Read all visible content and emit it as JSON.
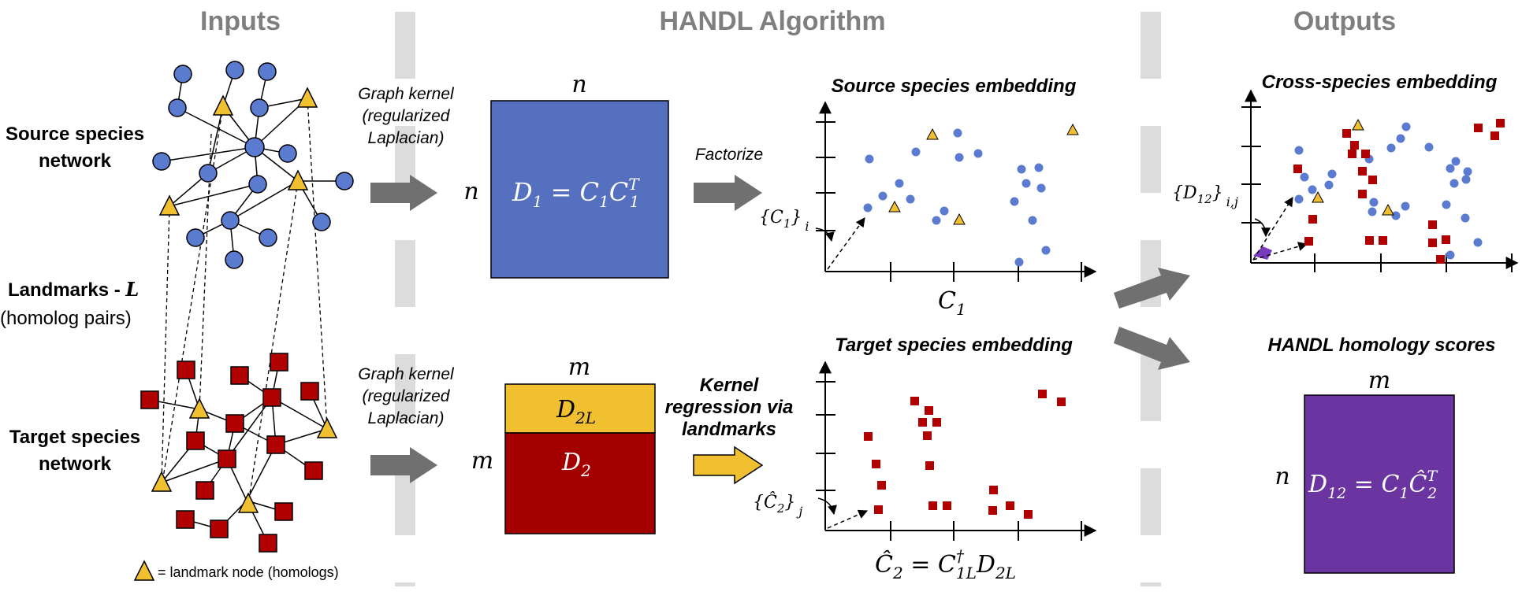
{
  "headers": {
    "inputs": "Inputs",
    "algorithm": "HANDL Algorithm",
    "outputs": "Outputs"
  },
  "inputs": {
    "source_label_1": "Source species",
    "source_label_2": "network",
    "landmarks_label": "Landmarks - ",
    "landmarks_var": "L",
    "landmarks_sub": "(homolog pairs)",
    "target_label_1": "Target species",
    "target_label_2": "network",
    "legend_text": "= landmark node (homologs)"
  },
  "algorithm": {
    "kernel_top_1": "Graph kernel",
    "kernel_top_2": "(regularized",
    "kernel_top_3": "Laplacian)",
    "kernel_bottom_1": "Graph kernel",
    "kernel_bottom_2": "(regularized",
    "kernel_bottom_3": "Laplacian)",
    "matrix1_col": "n",
    "matrix1_row": "n",
    "matrix1_formula_a": "D",
    "matrix1_formula_a_sub": "1",
    "matrix1_formula_eq": " = C",
    "matrix1_formula_b_sub": "1",
    "matrix1_formula_c": "C",
    "matrix1_formula_c_sub": "1",
    "matrix1_formula_c_sup": "T",
    "matrix2_col": "m",
    "matrix2_row": "m",
    "matrix2_top": "D",
    "matrix2_top_sub": "2L",
    "matrix2_bottom": "D",
    "matrix2_bottom_sub": "2",
    "factorize": "Factorize",
    "kernel_reg_1": "Kernel",
    "kernel_reg_2": "regression via",
    "kernel_reg_3": "landmarks",
    "source_embed_title": "Source species embedding",
    "target_embed_title": "Target species embedding",
    "c1_axis": "C",
    "c1_axis_sub": "1",
    "c1_label": "{C",
    "c1_label_sub": "1",
    "c1_label_close": "}",
    "c1_label_i": "i",
    "c2_label": "{Ĉ",
    "c2_label_sub": "2",
    "c2_label_close": "}",
    "c2_label_j": "j",
    "c2_formula_a": "Ĉ",
    "c2_formula_a_sub": "2",
    "c2_formula_eq": " = C",
    "c2_formula_sup": "†",
    "c2_formula_sub": "1L",
    "c2_formula_d": "D",
    "c2_formula_d_sub": "2L"
  },
  "outputs": {
    "cross_title": "Cross-species embedding",
    "d12_label": "{D",
    "d12_label_sub": "12",
    "d12_label_close": "}",
    "d12_label_ij": "i,j",
    "handl_title": "HANDL homology scores",
    "matrix_col": "m",
    "matrix_row": "n",
    "matrix_formula_a": "D",
    "matrix_formula_a_sub": "12",
    "matrix_formula_eq": " = C",
    "matrix_formula_eq_sub": "1",
    "matrix_formula_c": "Ĉ",
    "matrix_formula_c_sub": "2",
    "matrix_formula_c_sup": "T"
  },
  "colors": {
    "blue_node": "#5b7bd0",
    "red_node": "#b00000",
    "landmark_yellow": "#f0c030",
    "matrix_blue": "#5670c0",
    "matrix_yellow": "#f0c030",
    "matrix_red": "#a50000",
    "matrix_purple": "#6a35a0",
    "arrow_gray": "#707070",
    "divider_gray": "#dcdcdc",
    "header_gray": "#7f7f7f"
  }
}
